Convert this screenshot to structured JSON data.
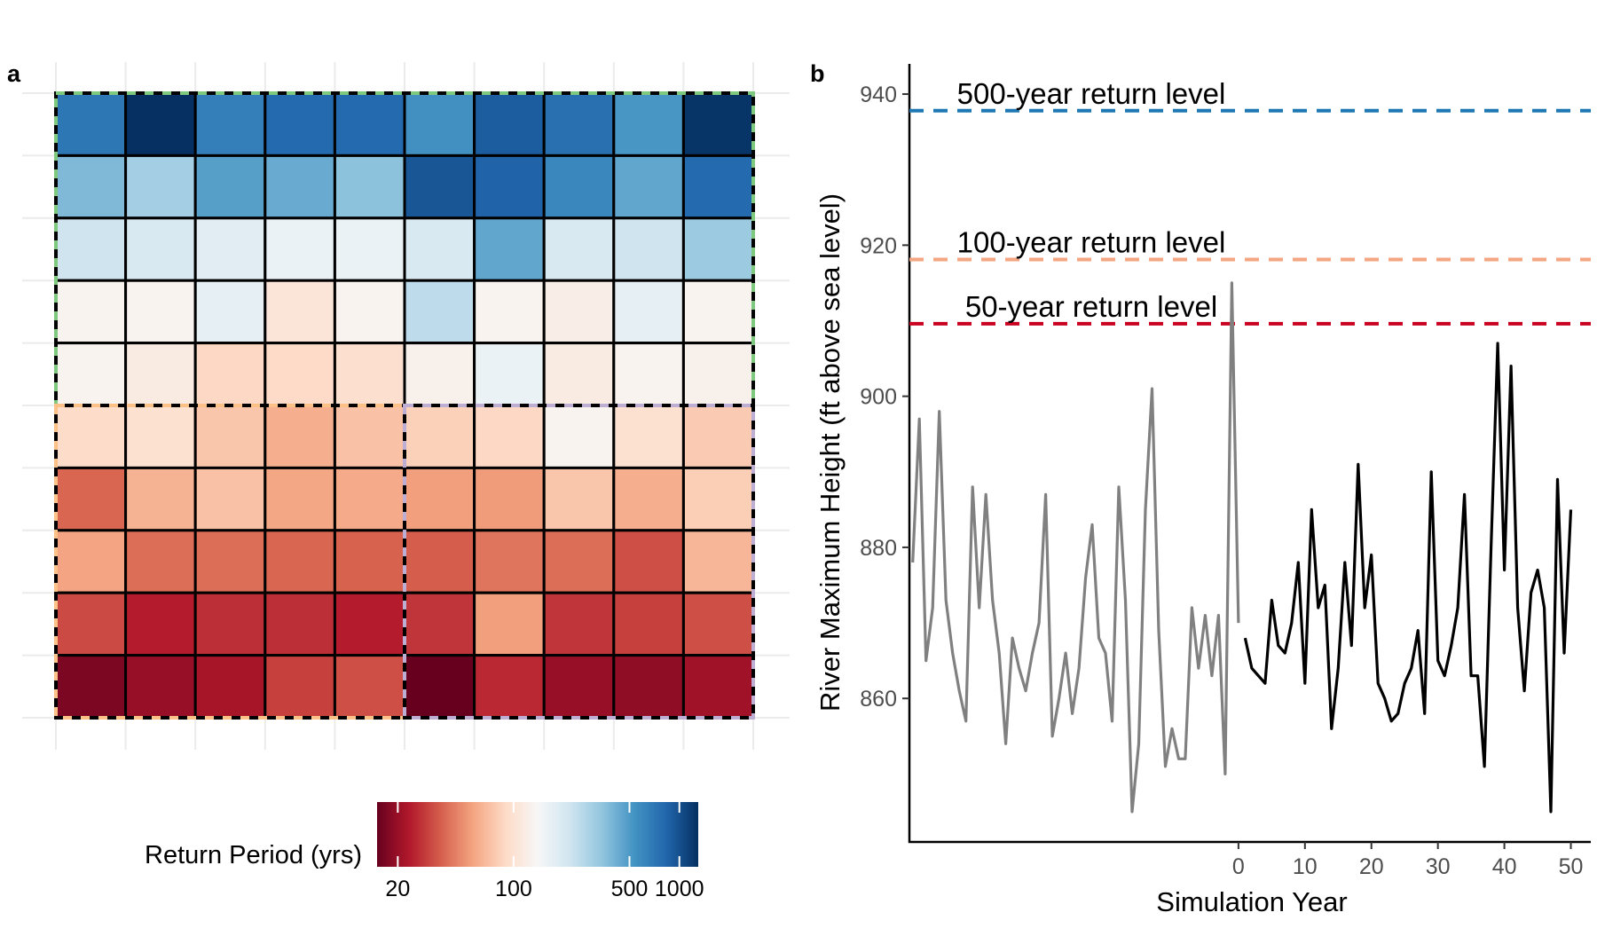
{
  "panel_a": {
    "label": "a",
    "legend": {
      "title": "Return Period (yrs)",
      "ticks": [
        {
          "value": 20,
          "label": "20"
        },
        {
          "value": 100,
          "label": "100"
        },
        {
          "value": 500,
          "label": "500"
        },
        {
          "value": 1000,
          "label": "1000"
        }
      ]
    }
  },
  "panel_b": {
    "label": "b",
    "xlabel": "Simulation Year",
    "ylabel": "River Maximum Height (ft above sea level)",
    "return_level_labels": [
      "500-year return level",
      "100-year return level",
      "50-year return level"
    ]
  },
  "colors": {
    "line_history": "#808080",
    "line_simulation": "#000000",
    "rl500": "#1f78b4",
    "rl100": "#f4a582",
    "rl50": "#ca0020",
    "border_green": "#7fc97f",
    "border_orange": "#fdc086",
    "border_purple": "#beaed4"
  },
  "chart_data": [
    {
      "type": "heatmap",
      "rows": 10,
      "cols": 10,
      "scale": "log",
      "color_range": [
        15,
        1300
      ],
      "values": [
        [
          700,
          1300,
          650,
          800,
          800,
          550,
          900,
          750,
          520,
          1250
        ],
        [
          380,
          300,
          480,
          430,
          350,
          950,
          850,
          600,
          450,
          800
        ],
        [
          220,
          200,
          180,
          160,
          160,
          200,
          450,
          200,
          220,
          320
        ],
        [
          130,
          130,
          170,
          105,
          130,
          250,
          130,
          120,
          170,
          130
        ],
        [
          130,
          115,
          88,
          90,
          95,
          125,
          160,
          115,
          130,
          125
        ],
        [
          92,
          98,
          75,
          62,
          72,
          82,
          88,
          130,
          98,
          78
        ],
        [
          38,
          64,
          72,
          58,
          60,
          55,
          54,
          75,
          62,
          80
        ],
        [
          57,
          40,
          40,
          38,
          37,
          36,
          42,
          40,
          33,
          66
        ],
        [
          32,
          24,
          27,
          27,
          24,
          28,
          55,
          28,
          30,
          33
        ],
        [
          17,
          20,
          22,
          30,
          33,
          15,
          26,
          20,
          19,
          21
        ]
      ]
    },
    {
      "type": "line",
      "xlim": [
        -49.5,
        53
      ],
      "ylim": [
        841,
        944
      ],
      "x_ticks": [
        0,
        10,
        20,
        30,
        40,
        50
      ],
      "y_ticks": [
        860,
        880,
        900,
        920,
        940
      ],
      "return_levels": [
        {
          "name": "500-year",
          "y": 937.8
        },
        {
          "name": "100-year",
          "y": 918.1
        },
        {
          "name": "50-year",
          "y": 909.6
        }
      ],
      "series": [
        {
          "x": [
            -49,
            -48,
            -47,
            -46,
            -45,
            -44,
            -43,
            -42,
            -41,
            -40,
            -39,
            -38,
            -37,
            -36,
            -35,
            -34,
            -33,
            -32,
            -31,
            -30,
            -29,
            -28,
            -27,
            -26,
            -25,
            -24,
            -23,
            -22,
            -21,
            -20,
            -19,
            -18,
            -17,
            -16,
            -15,
            -14,
            -13,
            -12,
            -11,
            -10,
            -9,
            -8,
            -7,
            -6,
            -5,
            -4,
            -3,
            -2,
            -1,
            0
          ],
          "y": [
            878,
            897,
            865,
            872,
            898,
            873,
            866,
            861,
            857,
            888,
            872,
            887,
            873,
            866,
            854,
            868,
            864,
            861,
            866,
            870,
            887,
            855,
            860,
            866,
            858,
            864,
            876,
            883,
            868,
            866,
            857,
            888,
            873,
            845,
            854,
            885,
            901,
            869,
            851,
            856,
            852,
            852,
            872,
            864,
            871,
            863,
            871,
            850,
            915,
            870
          ]
        },
        {
          "x": [
            1,
            2,
            3,
            4,
            5,
            6,
            7,
            8,
            9,
            10,
            11,
            12,
            13,
            14,
            15,
            16,
            17,
            18,
            19,
            20,
            21,
            22,
            23,
            24,
            25,
            26,
            27,
            28,
            29,
            30,
            31,
            32,
            33,
            34,
            35,
            36,
            37,
            38,
            39,
            40,
            41,
            42,
            43,
            44,
            45,
            46,
            47,
            48,
            49,
            50
          ],
          "y": [
            868,
            864,
            863,
            862,
            873,
            867,
            866,
            870,
            878,
            862,
            885,
            872,
            875,
            856,
            864,
            878,
            867,
            891,
            872,
            879,
            862,
            860,
            857,
            858,
            862,
            864,
            869,
            858,
            890,
            865,
            863,
            867,
            872,
            887,
            863,
            863,
            851,
            880,
            907,
            877,
            904,
            872,
            861,
            874,
            877,
            872,
            845,
            889,
            866,
            885
          ]
        }
      ]
    }
  ]
}
